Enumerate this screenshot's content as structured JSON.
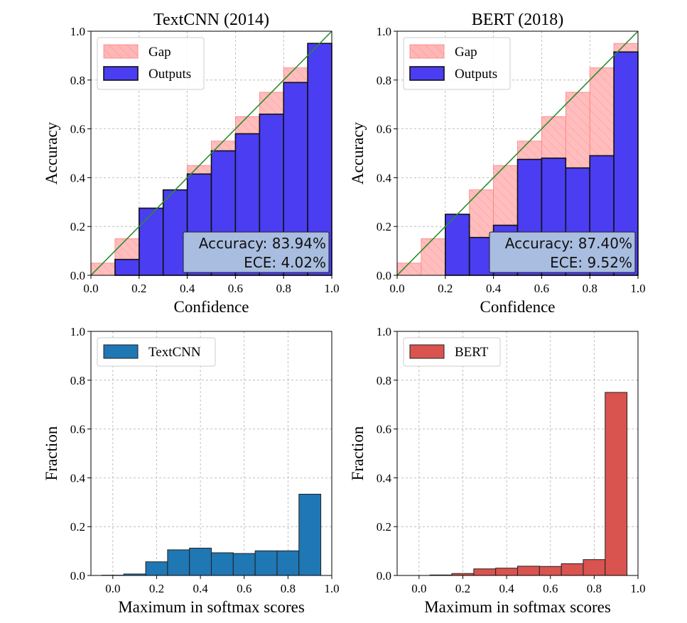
{
  "colors": {
    "gap_fill": "#ffb6b6",
    "gap_edge": "#ff7f7f",
    "outputs_fill": "#4a3df2",
    "diagonal": "#2e8b2e",
    "textcnn_fill": "#1f77b4",
    "bert_fill": "#d9534f",
    "annot_box": "#a9bde0",
    "grid": "#b0b0b0"
  },
  "chart_data": [
    {
      "type": "bar",
      "title": "TextCNN (2014)",
      "xlabel": "Confidence",
      "ylabel": "Accuracy",
      "xlim": [
        0,
        1
      ],
      "ylim": [
        0,
        1
      ],
      "xticks": [
        "0.0",
        "0.2",
        "0.4",
        "0.6",
        "0.8",
        "1.0"
      ],
      "yticks": [
        "0.0",
        "0.2",
        "0.4",
        "0.6",
        "0.8",
        "1.0"
      ],
      "grid": true,
      "legend": "top-left",
      "series": [
        {
          "name": "Gap",
          "values": [
            0.05,
            0.15,
            0.25,
            0.35,
            0.45,
            0.55,
            0.65,
            0.75,
            0.85,
            0.95
          ]
        },
        {
          "name": "Outputs",
          "values": [
            0.0,
            0.065,
            0.275,
            0.35,
            0.415,
            0.51,
            0.58,
            0.66,
            0.79,
            0.95
          ]
        }
      ],
      "bin_edges": [
        0,
        0.1,
        0.2,
        0.3,
        0.4,
        0.5,
        0.6,
        0.7,
        0.8,
        0.9,
        1.0
      ],
      "annotation": {
        "line1": "Accuracy: 83.94%",
        "line2": "ECE: 4.02%"
      }
    },
    {
      "type": "bar",
      "title": "BERT (2018)",
      "xlabel": "Confidence",
      "ylabel": "Accuracy",
      "xlim": [
        0,
        1
      ],
      "ylim": [
        0,
        1
      ],
      "xticks": [
        "0.0",
        "0.2",
        "0.4",
        "0.6",
        "0.8",
        "1.0"
      ],
      "yticks": [
        "0.0",
        "0.2",
        "0.4",
        "0.6",
        "0.8",
        "1.0"
      ],
      "grid": true,
      "legend": "top-left",
      "series": [
        {
          "name": "Gap",
          "values": [
            0.05,
            0.15,
            0.25,
            0.35,
            0.45,
            0.55,
            0.65,
            0.75,
            0.85,
            0.95
          ]
        },
        {
          "name": "Outputs",
          "values": [
            0.0,
            0.0,
            0.25,
            0.155,
            0.205,
            0.475,
            0.48,
            0.44,
            0.49,
            0.915
          ]
        }
      ],
      "bin_edges": [
        0,
        0.1,
        0.2,
        0.3,
        0.4,
        0.5,
        0.6,
        0.7,
        0.8,
        0.9,
        1.0
      ],
      "annotation": {
        "line1": "Accuracy: 87.40%",
        "line2": "ECE: 9.52%"
      }
    },
    {
      "type": "bar",
      "title": "",
      "xlabel": "Maximum in softmax scores",
      "ylabel": "Fraction",
      "xlim": [
        -0.1,
        1.0
      ],
      "ylim": [
        0,
        1
      ],
      "xticks": [
        "0.0",
        "0.2",
        "0.4",
        "0.6",
        "0.8",
        "1.0"
      ],
      "yticks": [
        "0.0",
        "0.2",
        "0.4",
        "0.6",
        "0.8",
        "1.0"
      ],
      "grid": true,
      "legend": "top-left",
      "series": [
        {
          "name": "TextCNN",
          "values": [
            0.001,
            0.006,
            0.056,
            0.105,
            0.112,
            0.093,
            0.09,
            0.101,
            0.101,
            0.333
          ]
        }
      ],
      "bin_edges": [
        -0.05,
        0.05,
        0.15,
        0.25,
        0.35,
        0.45,
        0.55,
        0.65,
        0.75,
        0.85,
        0.95
      ]
    },
    {
      "type": "bar",
      "title": "",
      "xlabel": "Maximum in softmax scores",
      "ylabel": "Fraction",
      "xlim": [
        -0.1,
        1.0
      ],
      "ylim": [
        0,
        1
      ],
      "xticks": [
        "0.0",
        "0.2",
        "0.4",
        "0.6",
        "0.8",
        "1.0"
      ],
      "yticks": [
        "0.0",
        "0.2",
        "0.4",
        "0.6",
        "0.8",
        "1.0"
      ],
      "grid": true,
      "legend": "top-left",
      "series": [
        {
          "name": "BERT",
          "values": [
            0.0,
            0.002,
            0.008,
            0.027,
            0.03,
            0.038,
            0.037,
            0.048,
            0.065,
            0.75
          ]
        }
      ],
      "bin_edges": [
        -0.05,
        0.05,
        0.15,
        0.25,
        0.35,
        0.45,
        0.55,
        0.65,
        0.75,
        0.85,
        0.95
      ]
    }
  ]
}
